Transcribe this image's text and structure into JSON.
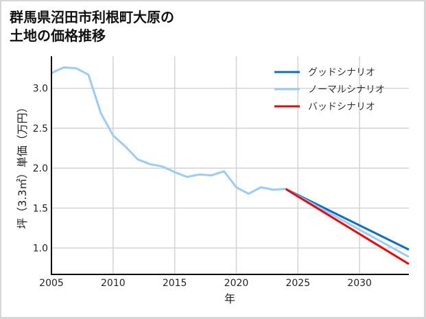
{
  "title_lines": [
    "群馬県沼田市利根町大原の",
    "土地の価格推移"
  ],
  "chart_data": {
    "type": "line",
    "title": "群馬県沼田市利根町大原の土地の価格推移",
    "xlabel": "年",
    "ylabel": "坪（3.3㎡）単価（万円）",
    "xlim": [
      2005,
      2034
    ],
    "ylim": [
      0.67,
      3.4
    ],
    "xticks": [
      2005,
      2010,
      2015,
      2020,
      2025,
      2030
    ],
    "yticks": [
      1.0,
      1.5,
      2.0,
      2.5,
      3.0
    ],
    "ytick_labels": [
      "1.0",
      "1.5",
      "2.0",
      "2.5",
      "3.0"
    ],
    "grid": true,
    "legend_position": "upper right",
    "historical": {
      "name": "ノーマルシナリオ (実績)",
      "x": [
        2005,
        2006,
        2007,
        2008,
        2009,
        2010,
        2011,
        2012,
        2013,
        2014,
        2015,
        2016,
        2017,
        2018,
        2019,
        2020,
        2021,
        2022,
        2023,
        2024
      ],
      "values": [
        3.19,
        3.26,
        3.25,
        3.17,
        2.69,
        2.41,
        2.27,
        2.11,
        2.05,
        2.02,
        1.95,
        1.89,
        1.92,
        1.91,
        1.96,
        1.76,
        1.68,
        1.76,
        1.73,
        1.74
      ]
    },
    "series": [
      {
        "name": "グッドシナリオ",
        "color": "#0a6fc4",
        "x": [
          2024,
          2034
        ],
        "values": [
          1.74,
          0.98
        ]
      },
      {
        "name": "ノーマルシナリオ",
        "color": "#9ccbf6",
        "x": [
          2024,
          2034
        ],
        "values": [
          1.74,
          0.89
        ]
      },
      {
        "name": "バッドシナリオ",
        "color": "#f00000",
        "x": [
          2024,
          2034
        ],
        "values": [
          1.74,
          0.8
        ]
      }
    ]
  },
  "colors": {
    "good": "#0a6fc4",
    "normal": "#9ccbf6",
    "bad": "#f00000",
    "grid": "#d3d3d3",
    "axis": "#000000"
  }
}
